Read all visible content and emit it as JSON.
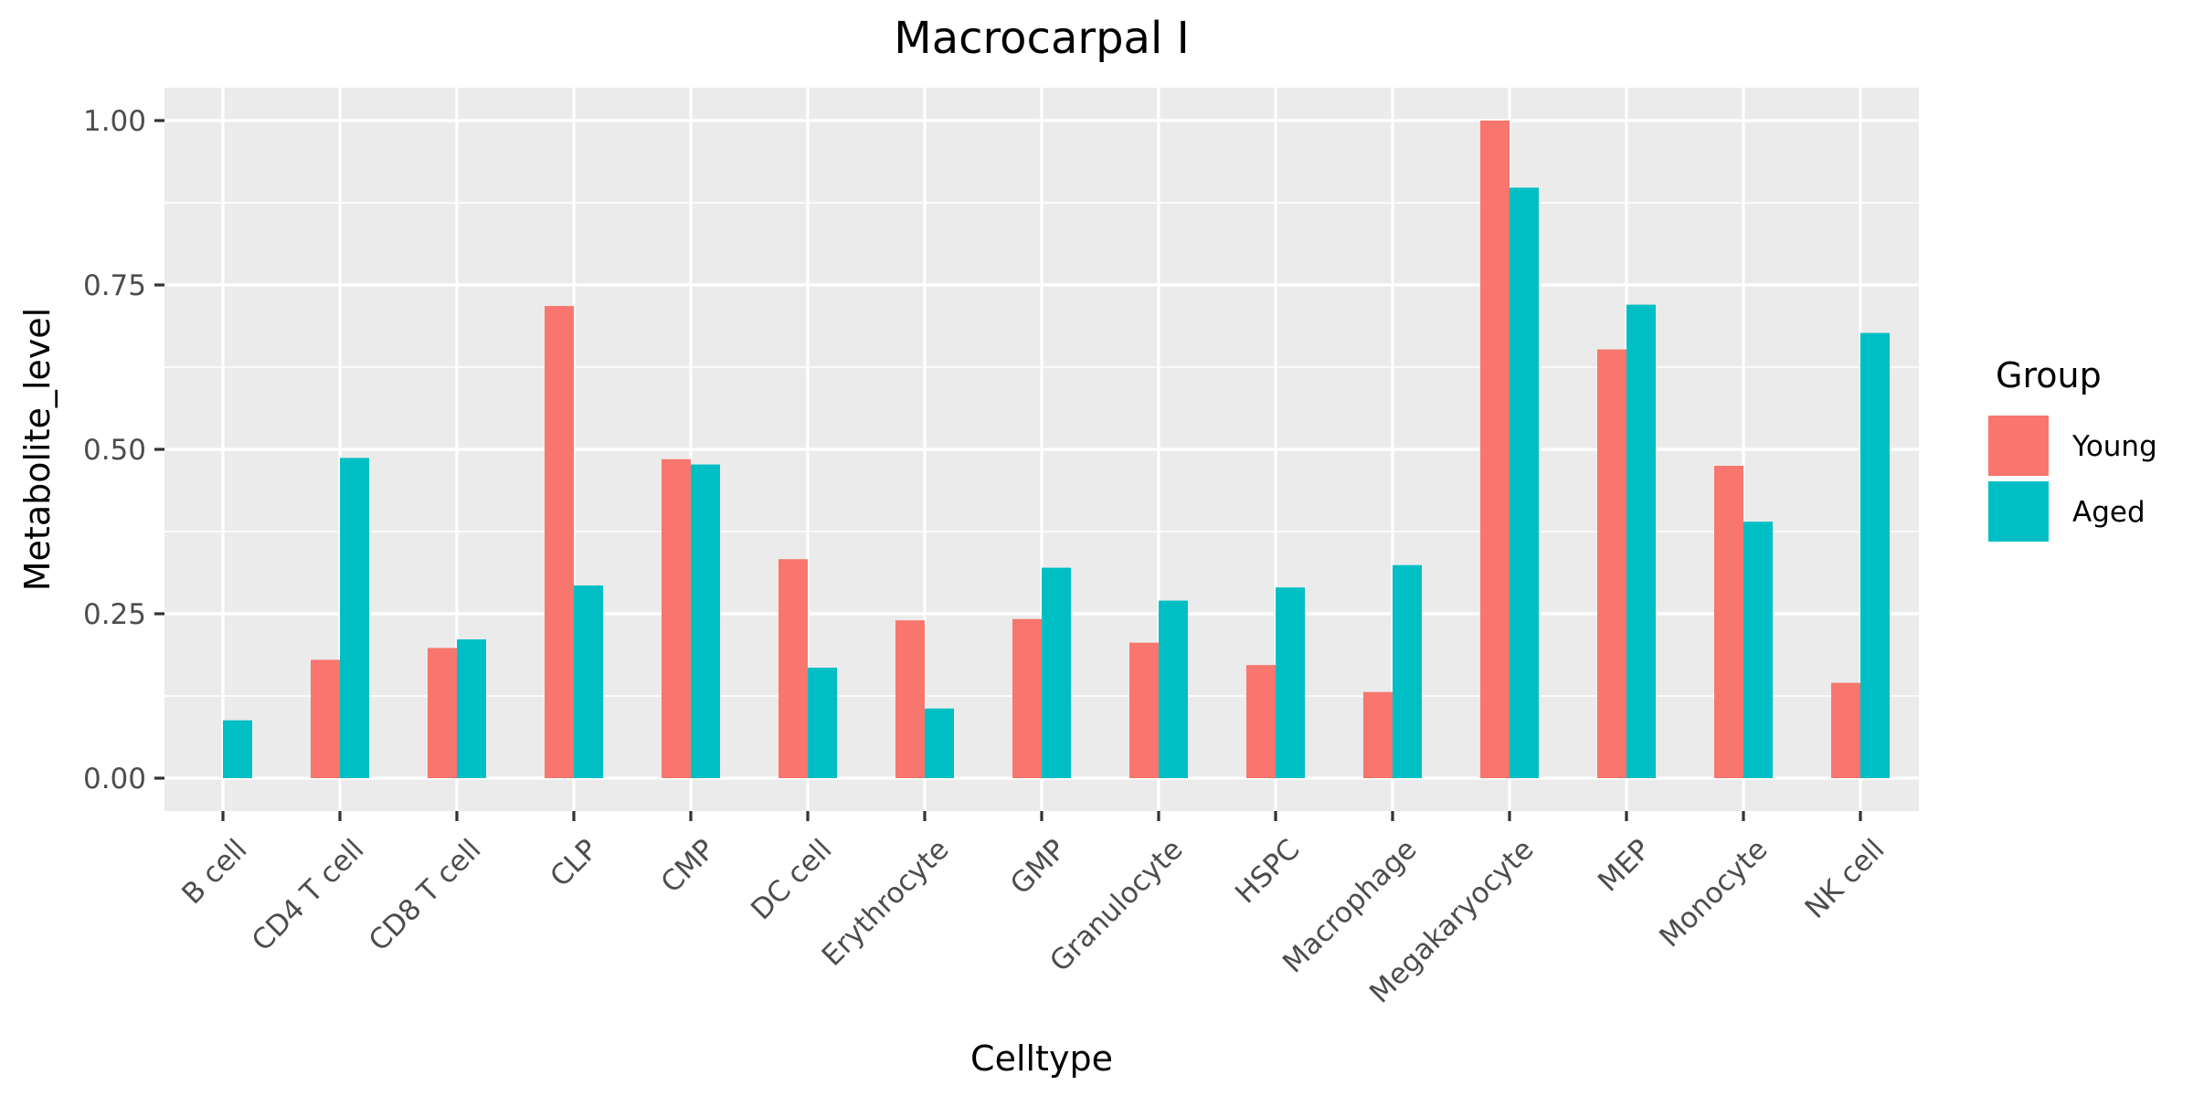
{
  "chart_data": {
    "type": "bar",
    "title": "Macrocarpal I",
    "xlabel": "Celltype",
    "ylabel": "Metabolite_level",
    "ylim": [
      -0.05,
      1.05
    ],
    "yticks": [
      0.0,
      0.25,
      0.5,
      0.75,
      1.0
    ],
    "ytick_labels": [
      "0.00",
      "0.25",
      "0.50",
      "0.75",
      "1.00"
    ],
    "grid": true,
    "categories": [
      "B cell",
      "CD4 T cell",
      "CD8 T cell",
      "CLP",
      "CMP",
      "DC cell",
      "Erythrocyte",
      "GMP",
      "Granulocyte",
      "HSPC",
      "Macrophage",
      "Megakaryocyte",
      "MEP",
      "Monocyte",
      "NK cell"
    ],
    "series": [
      {
        "name": "Young",
        "color": "#F8766D",
        "values": [
          0.0,
          0.18,
          0.198,
          0.718,
          0.485,
          0.333,
          0.24,
          0.242,
          0.206,
          0.172,
          0.131,
          1.0,
          0.652,
          0.475,
          0.145
        ]
      },
      {
        "name": "Aged",
        "color": "#00BFC4",
        "values": [
          0.088,
          0.487,
          0.211,
          0.293,
          0.477,
          0.168,
          0.106,
          0.32,
          0.27,
          0.29,
          0.324,
          0.898,
          0.72,
          0.39,
          0.677
        ]
      }
    ],
    "legend": {
      "title": "Group",
      "position": "right"
    }
  },
  "colors": {
    "panel": "#EBEBEB",
    "grid_major": "#FFFFFF",
    "tick_text": "#4D4D4D",
    "tick_mark": "#333333"
  }
}
